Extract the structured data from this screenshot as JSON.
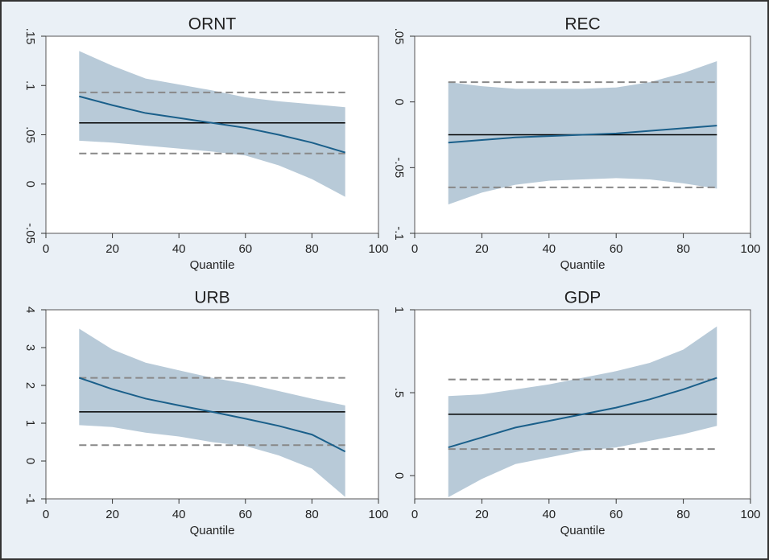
{
  "chart_data": [
    {
      "type": "quantile",
      "title": "ORNT",
      "x_label": "Quantile",
      "x": [
        10,
        20,
        30,
        40,
        50,
        60,
        70,
        80,
        90
      ],
      "xlim": [
        0,
        100
      ],
      "xticks": [
        0,
        20,
        40,
        60,
        80,
        100
      ],
      "ylim": [
        -0.05,
        0.15
      ],
      "yticks": [
        {
          "value": -0.05,
          "label": "-.05"
        },
        0,
        {
          "value": 0.05,
          "label": ".05"
        },
        {
          "value": 0.1,
          "label": ".1"
        },
        {
          "value": 0.15,
          "label": ".15"
        }
      ],
      "estimate": {
        "values": [
          0.089,
          0.08,
          0.072,
          0.067,
          0.062,
          0.057,
          0.05,
          0.042,
          0.032
        ],
        "color": "#1a5f8a"
      },
      "band": {
        "lower": [
          0.044,
          0.042,
          0.039,
          0.036,
          0.033,
          0.029,
          0.019,
          0.005,
          -0.013
        ],
        "upper": [
          0.135,
          0.12,
          0.107,
          0.101,
          0.095,
          0.088,
          0.084,
          0.081,
          0.078
        ],
        "color": "#b8cad8"
      },
      "ols": {
        "value": 0.062,
        "lower": 0.031,
        "upper": 0.093,
        "color": "#000000",
        "ci_color": "#888888"
      }
    },
    {
      "type": "quantile",
      "title": "REC",
      "x_label": "Quantile",
      "x": [
        10,
        20,
        30,
        40,
        50,
        60,
        70,
        80,
        90
      ],
      "xlim": [
        0,
        100
      ],
      "xticks": [
        0,
        20,
        40,
        60,
        80,
        100
      ],
      "ylim": [
        -0.1,
        0.05
      ],
      "yticks": [
        {
          "value": -0.1,
          "label": "-.1"
        },
        {
          "value": -0.05,
          "label": "-.05"
        },
        0,
        {
          "value": 0.05,
          "label": ".05"
        }
      ],
      "estimate": {
        "values": [
          -0.031,
          -0.029,
          -0.027,
          -0.026,
          -0.025,
          -0.024,
          -0.022,
          -0.02,
          -0.018
        ],
        "color": "#1a5f8a"
      },
      "band": {
        "lower": [
          -0.078,
          -0.069,
          -0.063,
          -0.06,
          -0.059,
          -0.058,
          -0.059,
          -0.062,
          -0.066
        ],
        "upper": [
          0.015,
          0.012,
          0.01,
          0.01,
          0.01,
          0.011,
          0.015,
          0.022,
          0.031
        ],
        "color": "#b8cad8"
      },
      "ols": {
        "value": -0.025,
        "lower": -0.065,
        "upper": 0.015,
        "color": "#000000",
        "ci_color": "#888888"
      }
    },
    {
      "type": "quantile",
      "title": "URB",
      "x_label": "Quantile",
      "x": [
        10,
        20,
        30,
        40,
        50,
        60,
        70,
        80,
        90
      ],
      "xlim": [
        0,
        100
      ],
      "xticks": [
        0,
        20,
        40,
        60,
        80,
        100
      ],
      "ylim": [
        -1,
        4
      ],
      "yticks": [
        -1,
        0,
        1,
        2,
        3,
        4
      ],
      "estimate": {
        "values": [
          2.2,
          1.9,
          1.65,
          1.47,
          1.3,
          1.12,
          0.93,
          0.7,
          0.25
        ],
        "color": "#1a5f8a"
      },
      "band": {
        "lower": [
          0.95,
          0.9,
          0.75,
          0.65,
          0.5,
          0.4,
          0.15,
          -0.2,
          -0.95
        ],
        "upper": [
          3.5,
          2.95,
          2.6,
          2.4,
          2.2,
          2.05,
          1.85,
          1.65,
          1.47
        ],
        "color": "#b8cad8"
      },
      "ols": {
        "value": 1.3,
        "lower": 0.42,
        "upper": 2.2,
        "color": "#000000",
        "ci_color": "#888888"
      }
    },
    {
      "type": "quantile",
      "title": "GDP",
      "x_label": "Quantile",
      "x": [
        10,
        20,
        30,
        40,
        50,
        60,
        70,
        80,
        90
      ],
      "xlim": [
        0,
        100
      ],
      "xticks": [
        0,
        20,
        40,
        60,
        80,
        100
      ],
      "ylim": [
        -0.14,
        1
      ],
      "yticks": [
        0,
        {
          "value": 0.5,
          "label": ".5"
        },
        1
      ],
      "estimate": {
        "values": [
          0.17,
          0.23,
          0.29,
          0.33,
          0.37,
          0.41,
          0.46,
          0.52,
          0.59
        ],
        "color": "#1a5f8a"
      },
      "band": {
        "lower": [
          -0.13,
          -0.02,
          0.07,
          0.11,
          0.15,
          0.17,
          0.21,
          0.25,
          0.3
        ],
        "upper": [
          0.48,
          0.49,
          0.52,
          0.55,
          0.59,
          0.63,
          0.68,
          0.76,
          0.9
        ],
        "color": "#b8cad8"
      },
      "ols": {
        "value": 0.37,
        "lower": 0.16,
        "upper": 0.58,
        "color": "#000000",
        "ci_color": "#888888"
      }
    }
  ]
}
